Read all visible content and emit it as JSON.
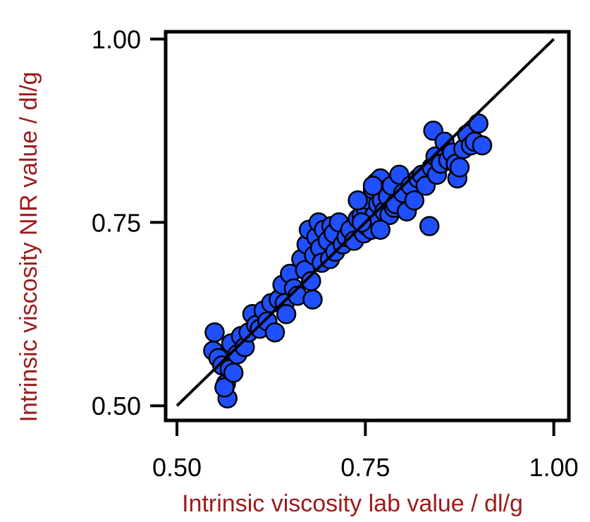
{
  "chart_data": {
    "type": "scatter",
    "title": "",
    "xlabel": "Intrinsic viscosity lab value / dl/g",
    "ylabel": "Intrinsic viscosity NIR value / dl/g",
    "xlim": [
      0.485,
      1.02
    ],
    "ylim": [
      0.48,
      1.01
    ],
    "x_ticks": [
      0.5,
      0.75,
      1.0
    ],
    "x_tick_labels": [
      "0.50",
      "0.75",
      "1.00"
    ],
    "y_ticks": [
      0.5,
      0.75,
      1.0
    ],
    "y_tick_labels": [
      "0.50",
      "0.75",
      "1.00"
    ],
    "grid": false,
    "legend": "none",
    "colors": {
      "marker_fill": "#1f4fff",
      "marker_edge": "#000000",
      "axis_title": "#9b1b1b",
      "reference_line": "#000000"
    },
    "reference_line": {
      "from": [
        0.5,
        0.5
      ],
      "to": [
        1.0,
        1.0
      ]
    },
    "points": [
      [
        0.55,
        0.6
      ],
      [
        0.548,
        0.575
      ],
      [
        0.555,
        0.565
      ],
      [
        0.56,
        0.555
      ],
      [
        0.565,
        0.53
      ],
      [
        0.567,
        0.51
      ],
      [
        0.563,
        0.525
      ],
      [
        0.57,
        0.55
      ],
      [
        0.575,
        0.545
      ],
      [
        0.572,
        0.585
      ],
      [
        0.58,
        0.57
      ],
      [
        0.585,
        0.595
      ],
      [
        0.59,
        0.58
      ],
      [
        0.595,
        0.6
      ],
      [
        0.6,
        0.625
      ],
      [
        0.605,
        0.61
      ],
      [
        0.61,
        0.605
      ],
      [
        0.615,
        0.63
      ],
      [
        0.62,
        0.615
      ],
      [
        0.625,
        0.64
      ],
      [
        0.63,
        0.6
      ],
      [
        0.635,
        0.645
      ],
      [
        0.64,
        0.665
      ],
      [
        0.643,
        0.64
      ],
      [
        0.645,
        0.625
      ],
      [
        0.65,
        0.68
      ],
      [
        0.655,
        0.66
      ],
      [
        0.66,
        0.65
      ],
      [
        0.665,
        0.7
      ],
      [
        0.67,
        0.685
      ],
      [
        0.672,
        0.72
      ],
      [
        0.675,
        0.74
      ],
      [
        0.678,
        0.67
      ],
      [
        0.68,
        0.645
      ],
      [
        0.682,
        0.705
      ],
      [
        0.685,
        0.73
      ],
      [
        0.688,
        0.75
      ],
      [
        0.69,
        0.715
      ],
      [
        0.692,
        0.695
      ],
      [
        0.695,
        0.74
      ],
      [
        0.7,
        0.725
      ],
      [
        0.703,
        0.7
      ],
      [
        0.705,
        0.745
      ],
      [
        0.708,
        0.735
      ],
      [
        0.71,
        0.71
      ],
      [
        0.715,
        0.75
      ],
      [
        0.72,
        0.72
      ],
      [
        0.725,
        0.73
      ],
      [
        0.73,
        0.74
      ],
      [
        0.735,
        0.725
      ],
      [
        0.74,
        0.755
      ],
      [
        0.745,
        0.76
      ],
      [
        0.748,
        0.735
      ],
      [
        0.75,
        0.77
      ],
      [
        0.752,
        0.745
      ],
      [
        0.755,
        0.78
      ],
      [
        0.758,
        0.74
      ],
      [
        0.76,
        0.795
      ],
      [
        0.762,
        0.76
      ],
      [
        0.765,
        0.805
      ],
      [
        0.767,
        0.775
      ],
      [
        0.77,
        0.81
      ],
      [
        0.772,
        0.78
      ],
      [
        0.775,
        0.765
      ],
      [
        0.778,
        0.795
      ],
      [
        0.78,
        0.785
      ],
      [
        0.782,
        0.76
      ],
      [
        0.785,
        0.8
      ],
      [
        0.788,
        0.77
      ],
      [
        0.79,
        0.775
      ],
      [
        0.795,
        0.815
      ],
      [
        0.8,
        0.79
      ],
      [
        0.805,
        0.765
      ],
      [
        0.81,
        0.8
      ],
      [
        0.815,
        0.78
      ],
      [
        0.82,
        0.81
      ],
      [
        0.825,
        0.815
      ],
      [
        0.83,
        0.8
      ],
      [
        0.835,
        0.745
      ],
      [
        0.838,
        0.825
      ],
      [
        0.84,
        0.875
      ],
      [
        0.843,
        0.84
      ],
      [
        0.845,
        0.815
      ],
      [
        0.85,
        0.83
      ],
      [
        0.855,
        0.86
      ],
      [
        0.86,
        0.835
      ],
      [
        0.865,
        0.845
      ],
      [
        0.87,
        0.83
      ],
      [
        0.872,
        0.81
      ],
      [
        0.875,
        0.825
      ],
      [
        0.88,
        0.85
      ],
      [
        0.885,
        0.87
      ],
      [
        0.89,
        0.855
      ],
      [
        0.895,
        0.86
      ],
      [
        0.9,
        0.885
      ],
      [
        0.905,
        0.855
      ],
      [
        0.76,
        0.8
      ],
      [
        0.745,
        0.75
      ],
      [
        0.74,
        0.78
      ],
      [
        0.77,
        0.74
      ]
    ]
  }
}
